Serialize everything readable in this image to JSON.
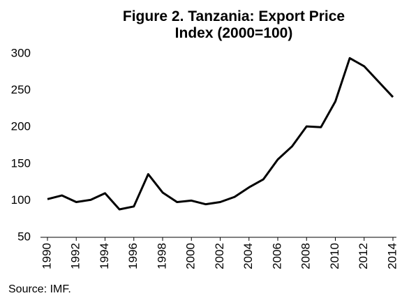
{
  "chart_data": {
    "type": "line",
    "title": "Figure 2. Tanzania: Export Price Index (2000=100)",
    "note": "Source: IMF.",
    "x": [
      1990,
      1991,
      1992,
      1993,
      1994,
      1995,
      1996,
      1997,
      1998,
      1999,
      2000,
      2001,
      2002,
      2003,
      2004,
      2005,
      2006,
      2007,
      2008,
      2009,
      2010,
      2011,
      2012,
      2013,
      2014
    ],
    "values": [
      102,
      107,
      98,
      101,
      110,
      88,
      92,
      136,
      111,
      98,
      100,
      95,
      98,
      105,
      118,
      129,
      156,
      174,
      201,
      200,
      235,
      294,
      283,
      262,
      241
    ],
    "color": "#000000",
    "xlim": [
      1990,
      2014
    ],
    "xticks": [
      1990,
      1992,
      1994,
      1996,
      1998,
      2000,
      2002,
      2004,
      2006,
      2008,
      2010,
      2012,
      2014
    ],
    "ylim": [
      50,
      300
    ],
    "yticks": [
      50,
      100,
      150,
      200,
      250,
      300
    ],
    "grid": false
  }
}
